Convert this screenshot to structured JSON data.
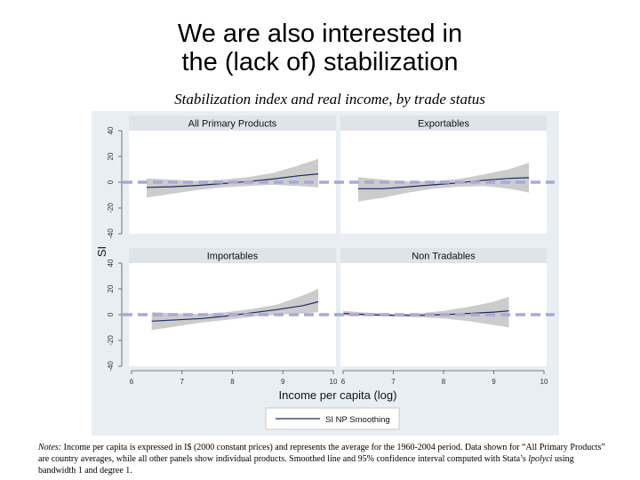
{
  "slide": {
    "title_line1": "We are also interested in",
    "title_line2": "the (lack of) stabilization"
  },
  "chart_data": {
    "type": "line",
    "title": "Stabilization index and real income, by trade status",
    "xlabel": "Income per capita (log)",
    "ylabel": "SI",
    "xlim": [
      6,
      10
    ],
    "ylim": [
      -40,
      40
    ],
    "xticks": [
      "6",
      "7",
      "8",
      "9",
      "10"
    ],
    "yticks": [
      "-40",
      "-20",
      "0",
      "20",
      "40"
    ],
    "reference_line": {
      "y": 0,
      "style": "dashed",
      "color": "#a9a9d9"
    },
    "legend": {
      "entries": [
        "SI NP Smoothing"
      ],
      "position": "bottom"
    },
    "panels": [
      {
        "name": "All Primary Products",
        "x": [
          6.3,
          6.8,
          7.3,
          7.8,
          8.3,
          8.8,
          9.3,
          9.7
        ],
        "y": [
          -4,
          -3.5,
          -2.5,
          -1,
          0.5,
          2.5,
          5,
          6.5
        ],
        "lower": [
          -12,
          -9,
          -6,
          -4,
          -3,
          -2,
          -3,
          -4
        ],
        "upper": [
          3,
          2,
          1,
          2,
          4,
          7,
          13,
          18
        ]
      },
      {
        "name": "Exportables",
        "x": [
          6.3,
          6.8,
          7.3,
          7.8,
          8.3,
          8.8,
          9.3,
          9.7
        ],
        "y": [
          -5,
          -5,
          -3.5,
          -2,
          -0.5,
          1.5,
          3,
          3.5
        ],
        "lower": [
          -15,
          -12,
          -8,
          -5,
          -3.5,
          -3,
          -5,
          -8
        ],
        "upper": [
          4,
          2,
          0.5,
          1,
          2.5,
          6,
          10,
          15
        ]
      },
      {
        "name": "Importables",
        "x": [
          6.4,
          6.9,
          7.4,
          7.9,
          8.4,
          8.9,
          9.4,
          9.7
        ],
        "y": [
          -5,
          -4,
          -3,
          -1,
          1.5,
          4,
          7,
          10
        ],
        "lower": [
          -12,
          -9,
          -6,
          -4,
          -1.5,
          0,
          1,
          2
        ],
        "upper": [
          2,
          1,
          0.5,
          2,
          4.5,
          8,
          15,
          20
        ]
      },
      {
        "name": "Non Tradables",
        "x": [
          6.0,
          6.5,
          7.0,
          7.5,
          8.0,
          8.5,
          9.0,
          9.3
        ],
        "y": [
          1,
          0,
          -0.5,
          -0.5,
          0,
          1,
          2,
          3
        ],
        "lower": [
          -1,
          -1,
          -1.5,
          -2,
          -3,
          -5,
          -8,
          -10
        ],
        "upper": [
          3,
          1.5,
          0.5,
          1,
          3,
          6,
          10,
          14
        ]
      }
    ]
  },
  "notes": {
    "label": "Notes:",
    "text_before": " Income per capita is expressed in I$ (2000 constant prices) and represents the average for the 1960-2004 period. Data shown for “All Primary Products” are country averages, while all other panels show individual products. Smoothed line and 95% confidence interval computed with Stata’s ",
    "command": "lpolyci",
    "text_after": " using bandwidth 1 and degree 1."
  },
  "colors": {
    "panel_bg": "#e9eef2",
    "strip_bg": "#dfe4ea",
    "band": "#c6c6c6",
    "line": "#1b2a5e",
    "refline": "#a9a9d9"
  }
}
